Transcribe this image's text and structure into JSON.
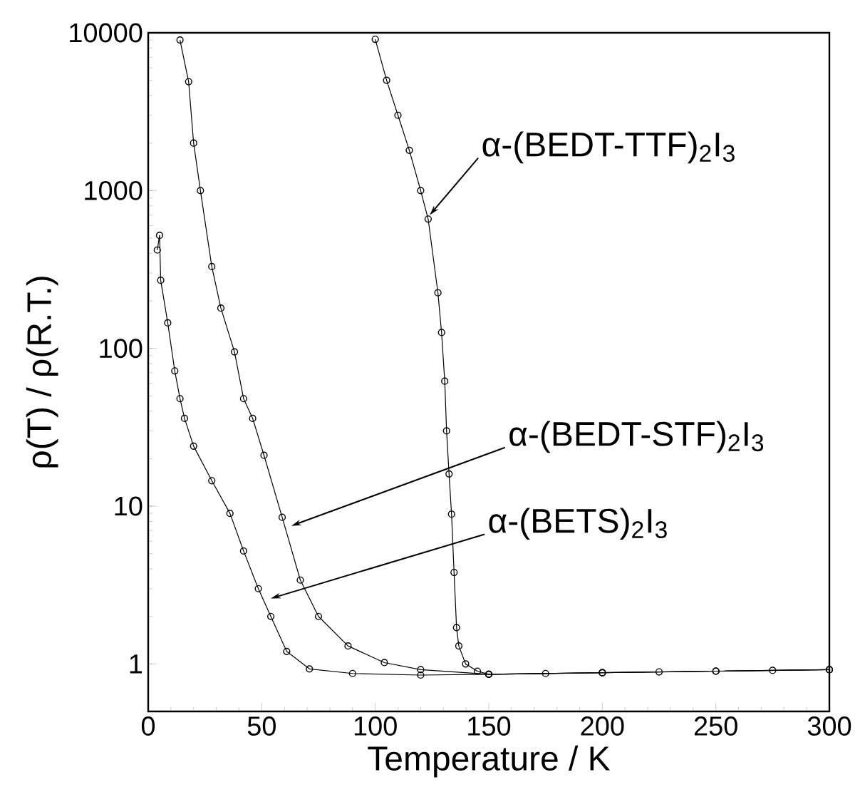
{
  "chart_data": {
    "type": "line",
    "xlabel": "Temperature / K",
    "ylabel": "ρ(T) / ρ(R.T.)",
    "log": "y",
    "xlim": [
      0,
      300
    ],
    "ylim": [
      0.5,
      10000
    ],
    "xticks": [
      0,
      50,
      100,
      150,
      200,
      250,
      300
    ],
    "yticks": [
      1,
      10,
      100,
      1000,
      10000
    ],
    "marker": "circle",
    "line_style": "solid",
    "series": [
      {
        "color": "#000000",
        "x": [
          100,
          105,
          110,
          115,
          120,
          123.3,
          127.6,
          129.2,
          130.6,
          131.4,
          132.5,
          133.6,
          134.7,
          135.8,
          136.8,
          139.8,
          145,
          150,
          175,
          200,
          225,
          250,
          275,
          300
        ],
        "values": [
          9100,
          5000,
          3000,
          1800,
          1000,
          660,
          225,
          126,
          62,
          30,
          16,
          8.9,
          3.8,
          1.7,
          1.3,
          1.0,
          0.9,
          0.86,
          0.87,
          0.88,
          0.89,
          0.9,
          0.91,
          0.92
        ]
      },
      {
        "color": "#000000",
        "x": [
          14,
          17.8,
          20,
          23,
          28,
          32,
          38,
          42,
          46,
          51,
          59,
          67,
          75,
          88,
          104,
          120,
          150,
          200,
          250,
          300
        ],
        "values": [
          9000,
          4900,
          2000,
          1000,
          330,
          180,
          95,
          48,
          36,
          21,
          8.5,
          3.4,
          2.0,
          1.3,
          1.02,
          0.92,
          0.86,
          0.88,
          0.9,
          0.92
        ]
      },
      {
        "color": "#000000",
        "x": [
          4,
          5,
          5.5,
          8.6,
          11.7,
          14,
          16,
          20,
          28,
          36,
          42,
          48.5,
          54,
          61,
          71,
          90,
          120,
          150,
          200,
          250,
          300
        ],
        "values": [
          420,
          520,
          270,
          145,
          72,
          48,
          36,
          24,
          14.5,
          9,
          5.2,
          3.0,
          2.0,
          1.2,
          0.93,
          0.87,
          0.85,
          0.86,
          0.88,
          0.9,
          0.92
        ]
      }
    ],
    "annotations": [
      {
        "text": "α-(BEDT-TTF)$_{2}$I$_{3}$",
        "x": 124,
        "y": 700
      },
      {
        "text": "α-(BEDT-STF)$_{2}$I$_{3}$",
        "x": 63,
        "y": 7.5
      },
      {
        "text": "α-(BETS)$_{2}$I$_{3}$",
        "x": 54,
        "y": 2.6
      }
    ]
  }
}
